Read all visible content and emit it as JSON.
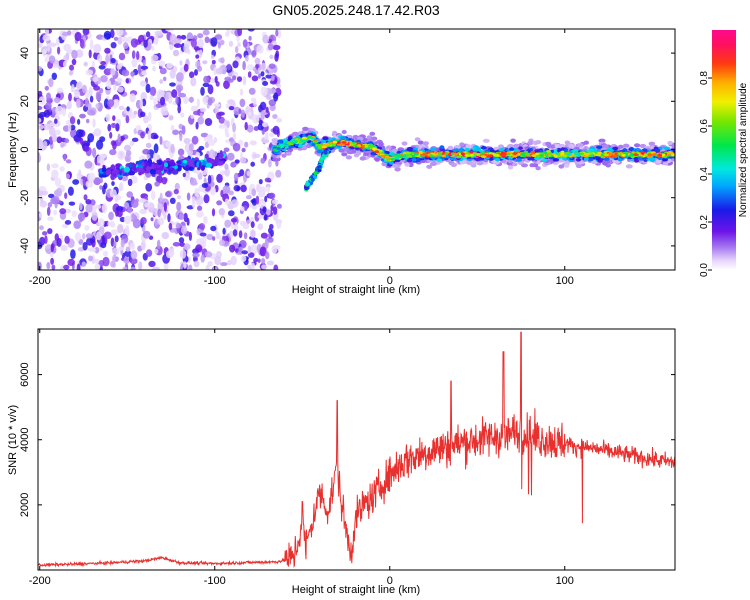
{
  "title": "GN05.2025.248.17.42.R03",
  "chart_data": [
    {
      "type": "heatmap",
      "title": "GN05.2025.248.17.42.R03",
      "xlabel": "Height of straight line (km)",
      "ylabel": "Frequency (Hz)",
      "xlim": [
        -201,
        163
      ],
      "ylim": [
        -50,
        50
      ],
      "xticks": [
        -200,
        -100,
        0,
        100
      ],
      "xtick_labels": [
        "-200",
        "-100",
        "0",
        "100"
      ],
      "yticks": [
        -40,
        -20,
        0,
        20,
        40
      ],
      "ytick_labels": [
        "-40",
        "-20",
        "0",
        "20",
        "40"
      ],
      "colorbar": {
        "label": "Normalized spectral amplitude",
        "range": [
          0,
          1
        ],
        "ticks": [
          0.0,
          0.2,
          0.4,
          0.6,
          0.8
        ],
        "tick_labels": [
          "0.0",
          "0.2",
          "0.4",
          "0.6",
          "0.8"
        ],
        "colormap": "rainbow (white → purple → blue → cyan → green → yellow → red → magenta)"
      },
      "noise_region_x": [
        -201,
        -63
      ],
      "ridge": {
        "x": [
          -165,
          -150,
          -130,
          -110,
          -100,
          -95
        ],
        "y": [
          -10,
          -8,
          -7,
          -6,
          -5,
          -4
        ]
      },
      "signal_track": {
        "x": [
          -66,
          -60,
          -50,
          -44,
          -40,
          -35,
          -30,
          -20,
          -10,
          -5,
          0,
          10,
          30,
          60,
          100,
          140,
          163
        ],
        "y": [
          0,
          2,
          4,
          5,
          1,
          2,
          3,
          2,
          1,
          -2,
          -4,
          -2,
          -2,
          -2,
          -2,
          -2,
          -2
        ],
        "amplitude": [
          0.5,
          0.6,
          0.7,
          0.8,
          0.85,
          0.85,
          0.9,
          0.9,
          0.85,
          0.8,
          0.75,
          0.8,
          0.9,
          0.9,
          0.75,
          0.9,
          0.85
        ]
      },
      "descending_branch": {
        "x": [
          -36,
          -38,
          -40,
          -44,
          -48
        ],
        "y": [
          -1,
          -3,
          -7,
          -12,
          -16
        ]
      }
    },
    {
      "type": "line",
      "xlabel": "Height of straight line (km)",
      "ylabel": "SNR (10 * v/v)",
      "xlim": [
        -201,
        163
      ],
      "ylim": [
        0,
        7400
      ],
      "xticks": [
        -200,
        -100,
        0,
        100
      ],
      "xtick_labels": [
        "-200",
        "-100",
        "0",
        "100"
      ],
      "yticks": [
        2000,
        4000,
        6000
      ],
      "ytick_labels": [
        "2000",
        "4000",
        "6000"
      ],
      "color": "#e8312f",
      "series": [
        {
          "name": "SNR",
          "x": [
            -201,
            -180,
            -160,
            -140,
            -130,
            -120,
            -100,
            -80,
            -65,
            -60,
            -55,
            -52,
            -50,
            -48,
            -45,
            -40,
            -35,
            -30,
            -28,
            -25,
            -22,
            -20,
            -15,
            -10,
            -5,
            0,
            5,
            10,
            15,
            20,
            25,
            30,
            40,
            50,
            60,
            70,
            75,
            80,
            90,
            100,
            105,
            110,
            120,
            130,
            140,
            150,
            163
          ],
          "values": [
            150,
            180,
            220,
            280,
            380,
            220,
            200,
            230,
            250,
            300,
            400,
            900,
            1600,
            700,
            1300,
            2400,
            1800,
            3200,
            2200,
            1200,
            500,
            1500,
            2000,
            2200,
            2600,
            2900,
            3200,
            3400,
            3500,
            3600,
            3700,
            3750,
            3900,
            4000,
            4100,
            4200,
            4300,
            4100,
            4000,
            3900,
            3800,
            3800,
            3700,
            3600,
            3500,
            3400,
            3300
          ]
        }
      ],
      "peaks": [
        {
          "x": 75,
          "y": 7300
        },
        {
          "x": 65,
          "y": 6700
        },
        {
          "x": 35,
          "y": 5800
        },
        {
          "x": -30,
          "y": 5200
        },
        {
          "x": -50,
          "y": 2100
        }
      ]
    }
  ]
}
